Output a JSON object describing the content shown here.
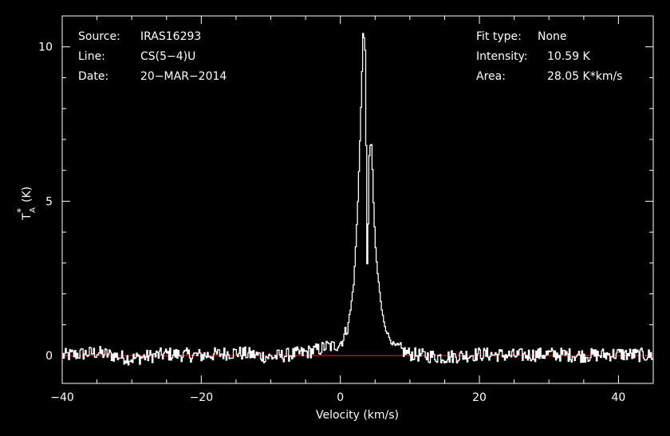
{
  "info_left": {
    "source_label": "Source:",
    "source_value": "IRAS16293",
    "line_label": "Line:",
    "line_value": "CS(5−4)U",
    "date_label": "Date:",
    "date_value": "20−MAR−2014"
  },
  "info_right": {
    "fit_label": "Fit type:",
    "fit_value": "None",
    "intensity_label": "Intensity:",
    "intensity_value": "10.59 K",
    "area_label": "Area:",
    "area_value": "28.05 K*km/s"
  },
  "chart_data": {
    "type": "line",
    "xlabel": "Velocity (km/s)",
    "ylabel_main": "T",
    "ylabel_sub": "A",
    "ylabel_sup": "*",
    "ylabel_unit": "(K)",
    "xlim": [
      -40,
      45
    ],
    "ylim": [
      -0.9,
      11.0
    ],
    "x_ticks": [
      -40,
      -20,
      0,
      20,
      40
    ],
    "x_tick_labels": [
      "−40",
      "−20",
      "0",
      "20",
      "40"
    ],
    "y_ticks": [
      0,
      5,
      10
    ],
    "y_tick_labels": [
      "0",
      "5",
      "10"
    ],
    "baseline": 0,
    "colors": {
      "spectrum": "#ffffff",
      "baseline": "#ff2020",
      "axes": "#ffffff",
      "background": "#000000"
    },
    "series": [
      {
        "type": "step",
        "x": [
          -40,
          -35,
          -30,
          -25,
          -20,
          -15,
          -10,
          -5,
          -3,
          -2,
          -1,
          0,
          0.5,
          1.0,
          1.5,
          2.0,
          2.5,
          3.0,
          3.3,
          3.6,
          3.9,
          4.2,
          4.5,
          4.8,
          5.1,
          5.4,
          5.7,
          6.0,
          6.5,
          7.0,
          7.5,
          8.0,
          9.0,
          10,
          12,
          15,
          20,
          25,
          30,
          35,
          40,
          45
        ],
        "y": [
          0.0,
          0.1,
          -0.1,
          0.05,
          0.0,
          0.1,
          -0.05,
          0.1,
          0.2,
          0.3,
          0.3,
          0.4,
          0.6,
          0.9,
          1.5,
          2.5,
          4.8,
          8.2,
          10.59,
          9.9,
          2.3,
          6.9,
          6.8,
          4.8,
          3.3,
          2.6,
          2.0,
          1.4,
          0.9,
          0.6,
          0.4,
          0.3,
          0.15,
          0.05,
          0.0,
          -0.05,
          0.05,
          0.0,
          0.05,
          0.0,
          0.05,
          0.0
        ]
      }
    ]
  }
}
